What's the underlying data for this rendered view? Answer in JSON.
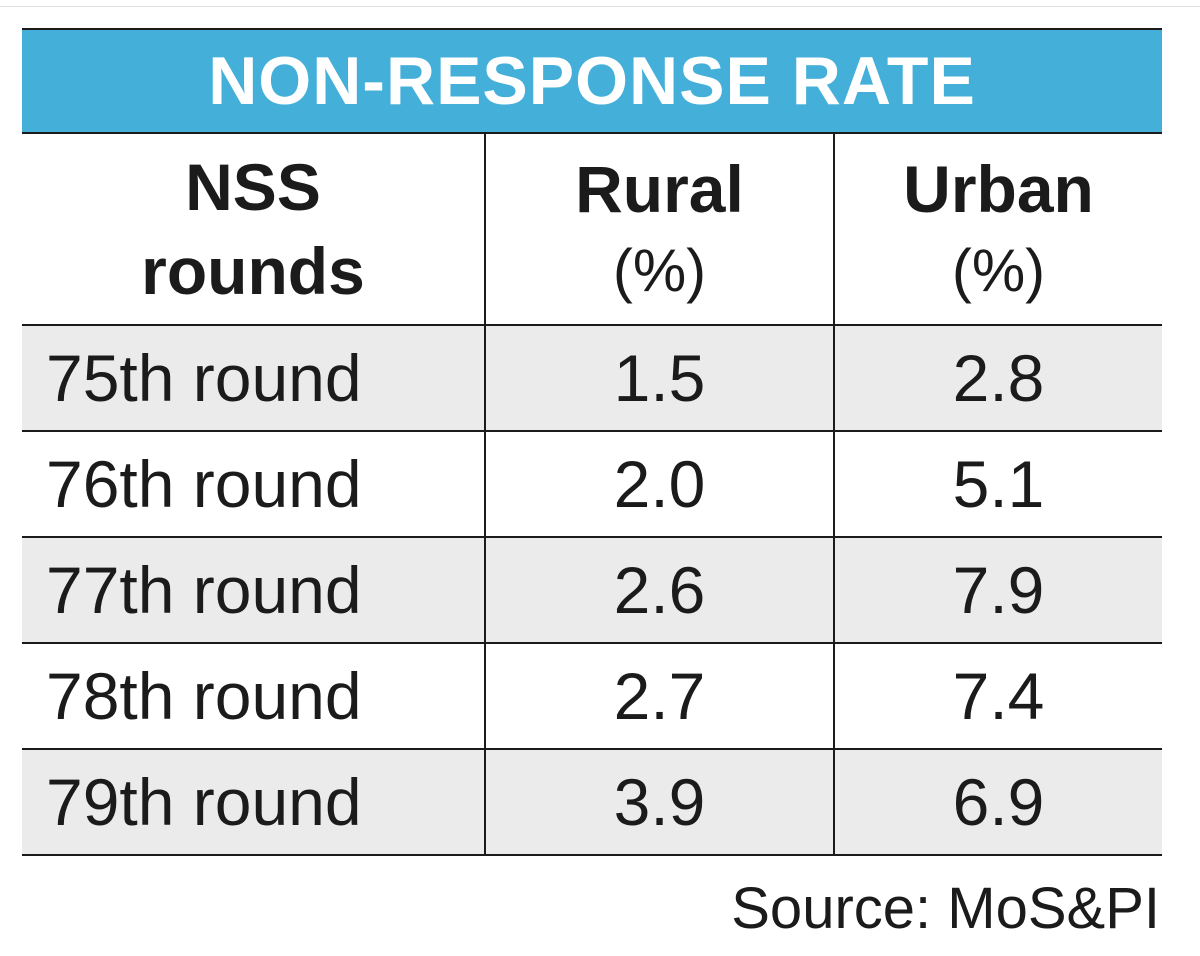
{
  "chart_data": {
    "type": "table",
    "title": "NON-RESPONSE RATE",
    "columns": [
      {
        "line1": "NSS",
        "line2": "rounds"
      },
      {
        "line1": "Rural",
        "line2": "(%)"
      },
      {
        "line1": "Urban",
        "line2": "(%)"
      }
    ],
    "rows": [
      {
        "round": "75th round",
        "rural": "1.5",
        "urban": "2.8"
      },
      {
        "round": "76th round",
        "rural": "2.0",
        "urban": "5.1"
      },
      {
        "round": "77th round",
        "rural": "2.6",
        "urban": "7.9"
      },
      {
        "round": "78th round",
        "rural": "2.7",
        "urban": "7.4"
      },
      {
        "round": "79th round",
        "rural": "3.9",
        "urban": "6.9"
      }
    ],
    "series": [
      {
        "name": "Rural",
        "values": [
          1.5,
          2.0,
          2.6,
          2.7,
          3.9
        ]
      },
      {
        "name": "Urban",
        "values": [
          2.8,
          5.1,
          7.9,
          7.4,
          6.9
        ]
      }
    ],
    "source": "Source: MoS&PI"
  },
  "colors": {
    "title_bg": "#44b0da",
    "title_text": "#ffffff",
    "row_shade": "#ebebeb",
    "rule": "#1b1b1b"
  }
}
